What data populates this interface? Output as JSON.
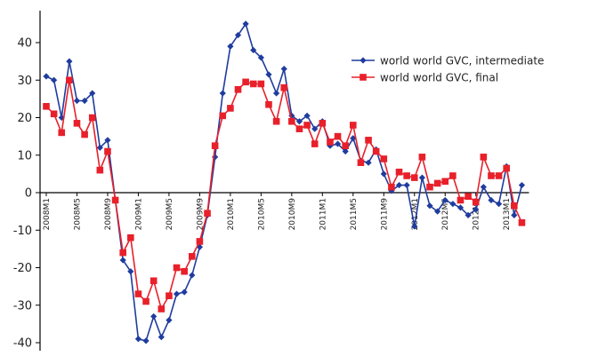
{
  "chart_data": {
    "type": "line",
    "title": "",
    "xlabel": "",
    "ylabel": "",
    "ylim": [
      -42,
      47
    ],
    "yticks": [
      40,
      30,
      20,
      10,
      0,
      -10,
      -20,
      -30,
      -40
    ],
    "grid": false,
    "legend_position": "top-right",
    "x_labels": [
      {
        "index": 0,
        "label": "2008M1"
      },
      {
        "index": 4,
        "label": "2008M5"
      },
      {
        "index": 8,
        "label": "2008M9"
      },
      {
        "index": 12,
        "label": "2009M1"
      },
      {
        "index": 16,
        "label": "2009M5"
      },
      {
        "index": 20,
        "label": "2009M9"
      },
      {
        "index": 24,
        "label": "2010M1"
      },
      {
        "index": 28,
        "label": "2010M5"
      },
      {
        "index": 32,
        "label": "2010M9"
      },
      {
        "index": 36,
        "label": "2011M1"
      },
      {
        "index": 40,
        "label": "2011M5"
      },
      {
        "index": 44,
        "label": "2011M9"
      },
      {
        "index": 48,
        "label": "2012M1"
      },
      {
        "index": 52,
        "label": "2012M5"
      },
      {
        "index": 56,
        "label": "2012M9"
      },
      {
        "index": 60,
        "label": "2013M1"
      }
    ],
    "series": [
      {
        "name": "world world GVC, intermediate",
        "color": "#1f3c9e",
        "marker": "diamond",
        "values": [
          31,
          30,
          20,
          35,
          24.5,
          24.5,
          26.5,
          12,
          14,
          -2,
          -18,
          -21,
          -39,
          -39.5,
          -33,
          -38.5,
          -34,
          -27,
          -26.5,
          -22,
          -14.5,
          -6,
          9.5,
          26.5,
          39,
          42,
          45,
          38,
          36,
          31.5,
          26.5,
          33,
          20.5,
          19,
          20.5,
          17,
          19,
          12.5,
          13,
          11,
          14.5,
          8.5,
          8,
          11.5,
          5,
          0.5,
          2,
          2,
          -9,
          4,
          -3.5,
          -5,
          -2,
          -3,
          -4,
          -6,
          -4.5,
          1.5,
          -2,
          -3,
          7,
          -6,
          2
        ]
      },
      {
        "name": "world world GVC, final",
        "color": "#e8202a",
        "marker": "square",
        "values": [
          23,
          21,
          16,
          30,
          18.5,
          15.5,
          20,
          6,
          11,
          -2,
          -16,
          -12,
          -27,
          -29,
          -23.5,
          -31,
          -27.5,
          -20,
          -21,
          -17,
          -13,
          -5.5,
          12.5,
          20.5,
          22.5,
          27.5,
          29.5,
          29,
          29,
          23.5,
          19,
          28,
          19,
          17,
          18,
          13,
          18.5,
          13.5,
          15,
          12.5,
          18,
          8,
          14,
          11,
          9,
          1.5,
          5.5,
          4.5,
          4,
          9.5,
          1.5,
          2.5,
          3,
          4.5,
          -2,
          -1,
          -2.5,
          9.5,
          4.5,
          4.5,
          6.5,
          -3.5,
          -8
        ]
      }
    ]
  }
}
